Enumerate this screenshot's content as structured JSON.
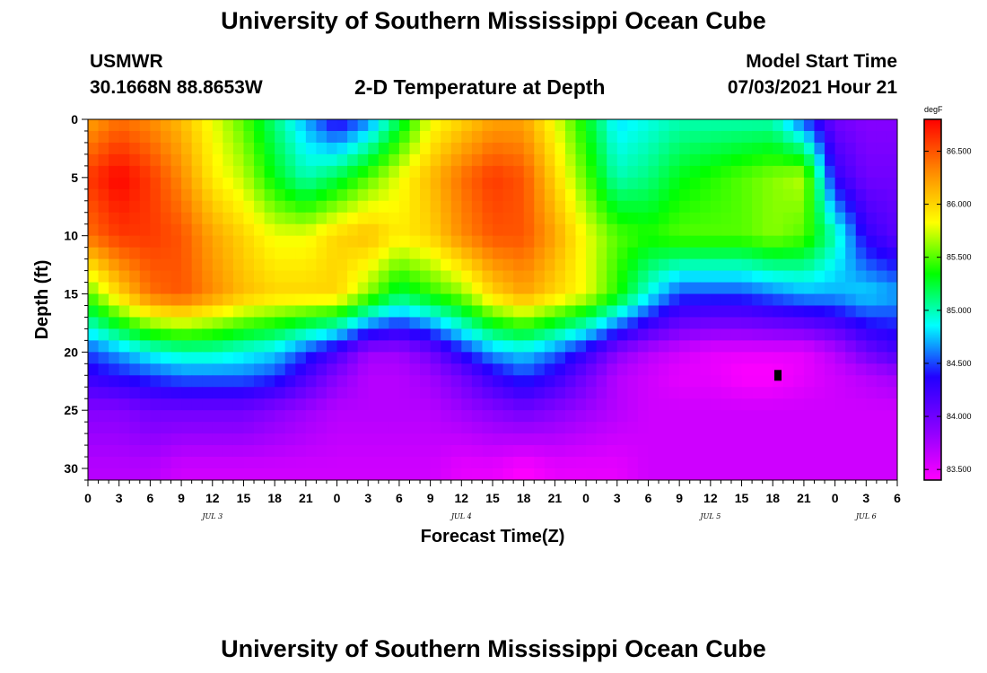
{
  "header": {
    "title": "University of Southern Mississippi Ocean Cube",
    "station": "USMWR",
    "coordinates": "30.1668N  88.8653W",
    "plot_title": "2-D Temperature at Depth",
    "model_label": "Model Start Time",
    "model_time": "07/03/2021 Hour 21"
  },
  "footer": {
    "title": "University of Southern Mississippi Ocean Cube"
  },
  "chart_data": {
    "type": "heatmap",
    "title": "2-D Temperature at Depth",
    "xlabel": "Forecast Time(Z)",
    "ylabel": "Depth (ft)",
    "x_range_hours": [
      0,
      78
    ],
    "y_range_ft": [
      0,
      31
    ],
    "x_ticks": [
      "0",
      "3",
      "6",
      "9",
      "12",
      "15",
      "18",
      "21",
      "0",
      "3",
      "6",
      "9",
      "12",
      "15",
      "18",
      "21",
      "0",
      "3",
      "6",
      "9",
      "12",
      "15",
      "18",
      "21",
      "0",
      "3",
      "6"
    ],
    "y_ticks": [
      "0",
      "5",
      "10",
      "15",
      "20",
      "25",
      "30"
    ],
    "dates": [
      {
        "label": "JUL 3",
        "hour": 12
      },
      {
        "label": "JUL 4",
        "hour": 36
      },
      {
        "label": "JUL 5",
        "hour": 60
      },
      {
        "label": "JUL 6",
        "hour": 75
      }
    ],
    "colorbar": {
      "unit": "degF",
      "min": 83.4,
      "max": 86.8,
      "ticks": [
        "86.500",
        "86.000",
        "85.500",
        "85.000",
        "84.500",
        "84.000",
        "83.500"
      ],
      "colors": [
        "#ff00ff",
        "#8800ff",
        "#2200ff",
        "#00ffff",
        "#00ff00",
        "#ffff00",
        "#ff8800",
        "#ff0000"
      ]
    },
    "marker": {
      "hour": 66.5,
      "depth_ft": 22
    },
    "x_hours": [
      0,
      3,
      6,
      9,
      12,
      15,
      18,
      21,
      24,
      27,
      30,
      33,
      36,
      39,
      42,
      45,
      48,
      51,
      54,
      57,
      60,
      63,
      66,
      69,
      72,
      75,
      78
    ],
    "depth_ft": [
      0,
      5,
      10,
      15,
      20,
      22,
      25,
      30
    ],
    "temperatures_degF": [
      [
        86.2,
        86.4,
        86.3,
        86.1,
        85.8,
        85.5,
        85.1,
        84.7,
        84.3,
        84.6,
        85.2,
        85.8,
        86.0,
        86.2,
        86.2,
        85.8,
        85.3,
        84.8,
        84.9,
        85.0,
        85.0,
        85.0,
        85.0,
        84.5,
        84.0,
        83.9,
        83.9
      ],
      [
        86.6,
        86.8,
        86.6,
        86.3,
        85.9,
        85.7,
        85.3,
        85.0,
        85.2,
        85.5,
        85.8,
        86.1,
        86.4,
        86.6,
        86.5,
        86.0,
        85.5,
        85.0,
        85.1,
        85.3,
        85.4,
        85.5,
        85.6,
        85.7,
        84.3,
        84.0,
        84.0
      ],
      [
        86.4,
        86.6,
        86.6,
        86.5,
        86.2,
        86.0,
        85.8,
        85.8,
        86.0,
        86.1,
        85.9,
        86.0,
        86.3,
        86.5,
        86.5,
        86.2,
        85.8,
        85.5,
        85.4,
        85.5,
        85.5,
        85.5,
        85.6,
        85.5,
        85.0,
        84.3,
        84.1
      ],
      [
        85.5,
        86.0,
        86.4,
        86.5,
        86.3,
        86.1,
        86.0,
        86.0,
        86.0,
        85.6,
        85.2,
        85.4,
        85.6,
        86.0,
        86.2,
        86.0,
        85.8,
        85.4,
        84.9,
        84.5,
        84.5,
        84.5,
        84.6,
        84.7,
        84.7,
        84.8,
        84.7
      ],
      [
        84.5,
        84.7,
        84.9,
        85.0,
        85.0,
        84.9,
        84.8,
        84.5,
        84.2,
        83.8,
        83.8,
        84.0,
        84.4,
        84.7,
        84.8,
        84.6,
        84.3,
        83.9,
        83.7,
        83.6,
        83.5,
        83.5,
        83.5,
        83.5,
        83.7,
        84.0,
        84.2
      ],
      [
        84.3,
        84.4,
        84.5,
        84.6,
        84.6,
        84.6,
        84.5,
        84.2,
        83.9,
        83.7,
        83.7,
        83.8,
        84.0,
        84.3,
        84.5,
        84.3,
        84.0,
        83.7,
        83.6,
        83.5,
        83.5,
        83.4,
        83.4,
        83.5,
        83.6,
        83.7,
        83.8
      ],
      [
        83.9,
        83.9,
        84.0,
        84.0,
        84.0,
        84.0,
        83.9,
        83.8,
        83.7,
        83.7,
        83.7,
        83.7,
        83.8,
        83.9,
        84.0,
        83.9,
        83.8,
        83.7,
        83.6,
        83.6,
        83.6,
        83.6,
        83.6,
        83.6,
        83.6,
        83.6,
        83.6
      ],
      [
        83.7,
        83.7,
        83.7,
        83.6,
        83.6,
        83.6,
        83.6,
        83.6,
        83.6,
        83.6,
        83.6,
        83.6,
        83.5,
        83.5,
        83.4,
        83.5,
        83.5,
        83.5,
        83.6,
        83.6,
        83.6,
        83.6,
        83.6,
        83.6,
        83.6,
        83.6,
        83.6
      ]
    ]
  }
}
